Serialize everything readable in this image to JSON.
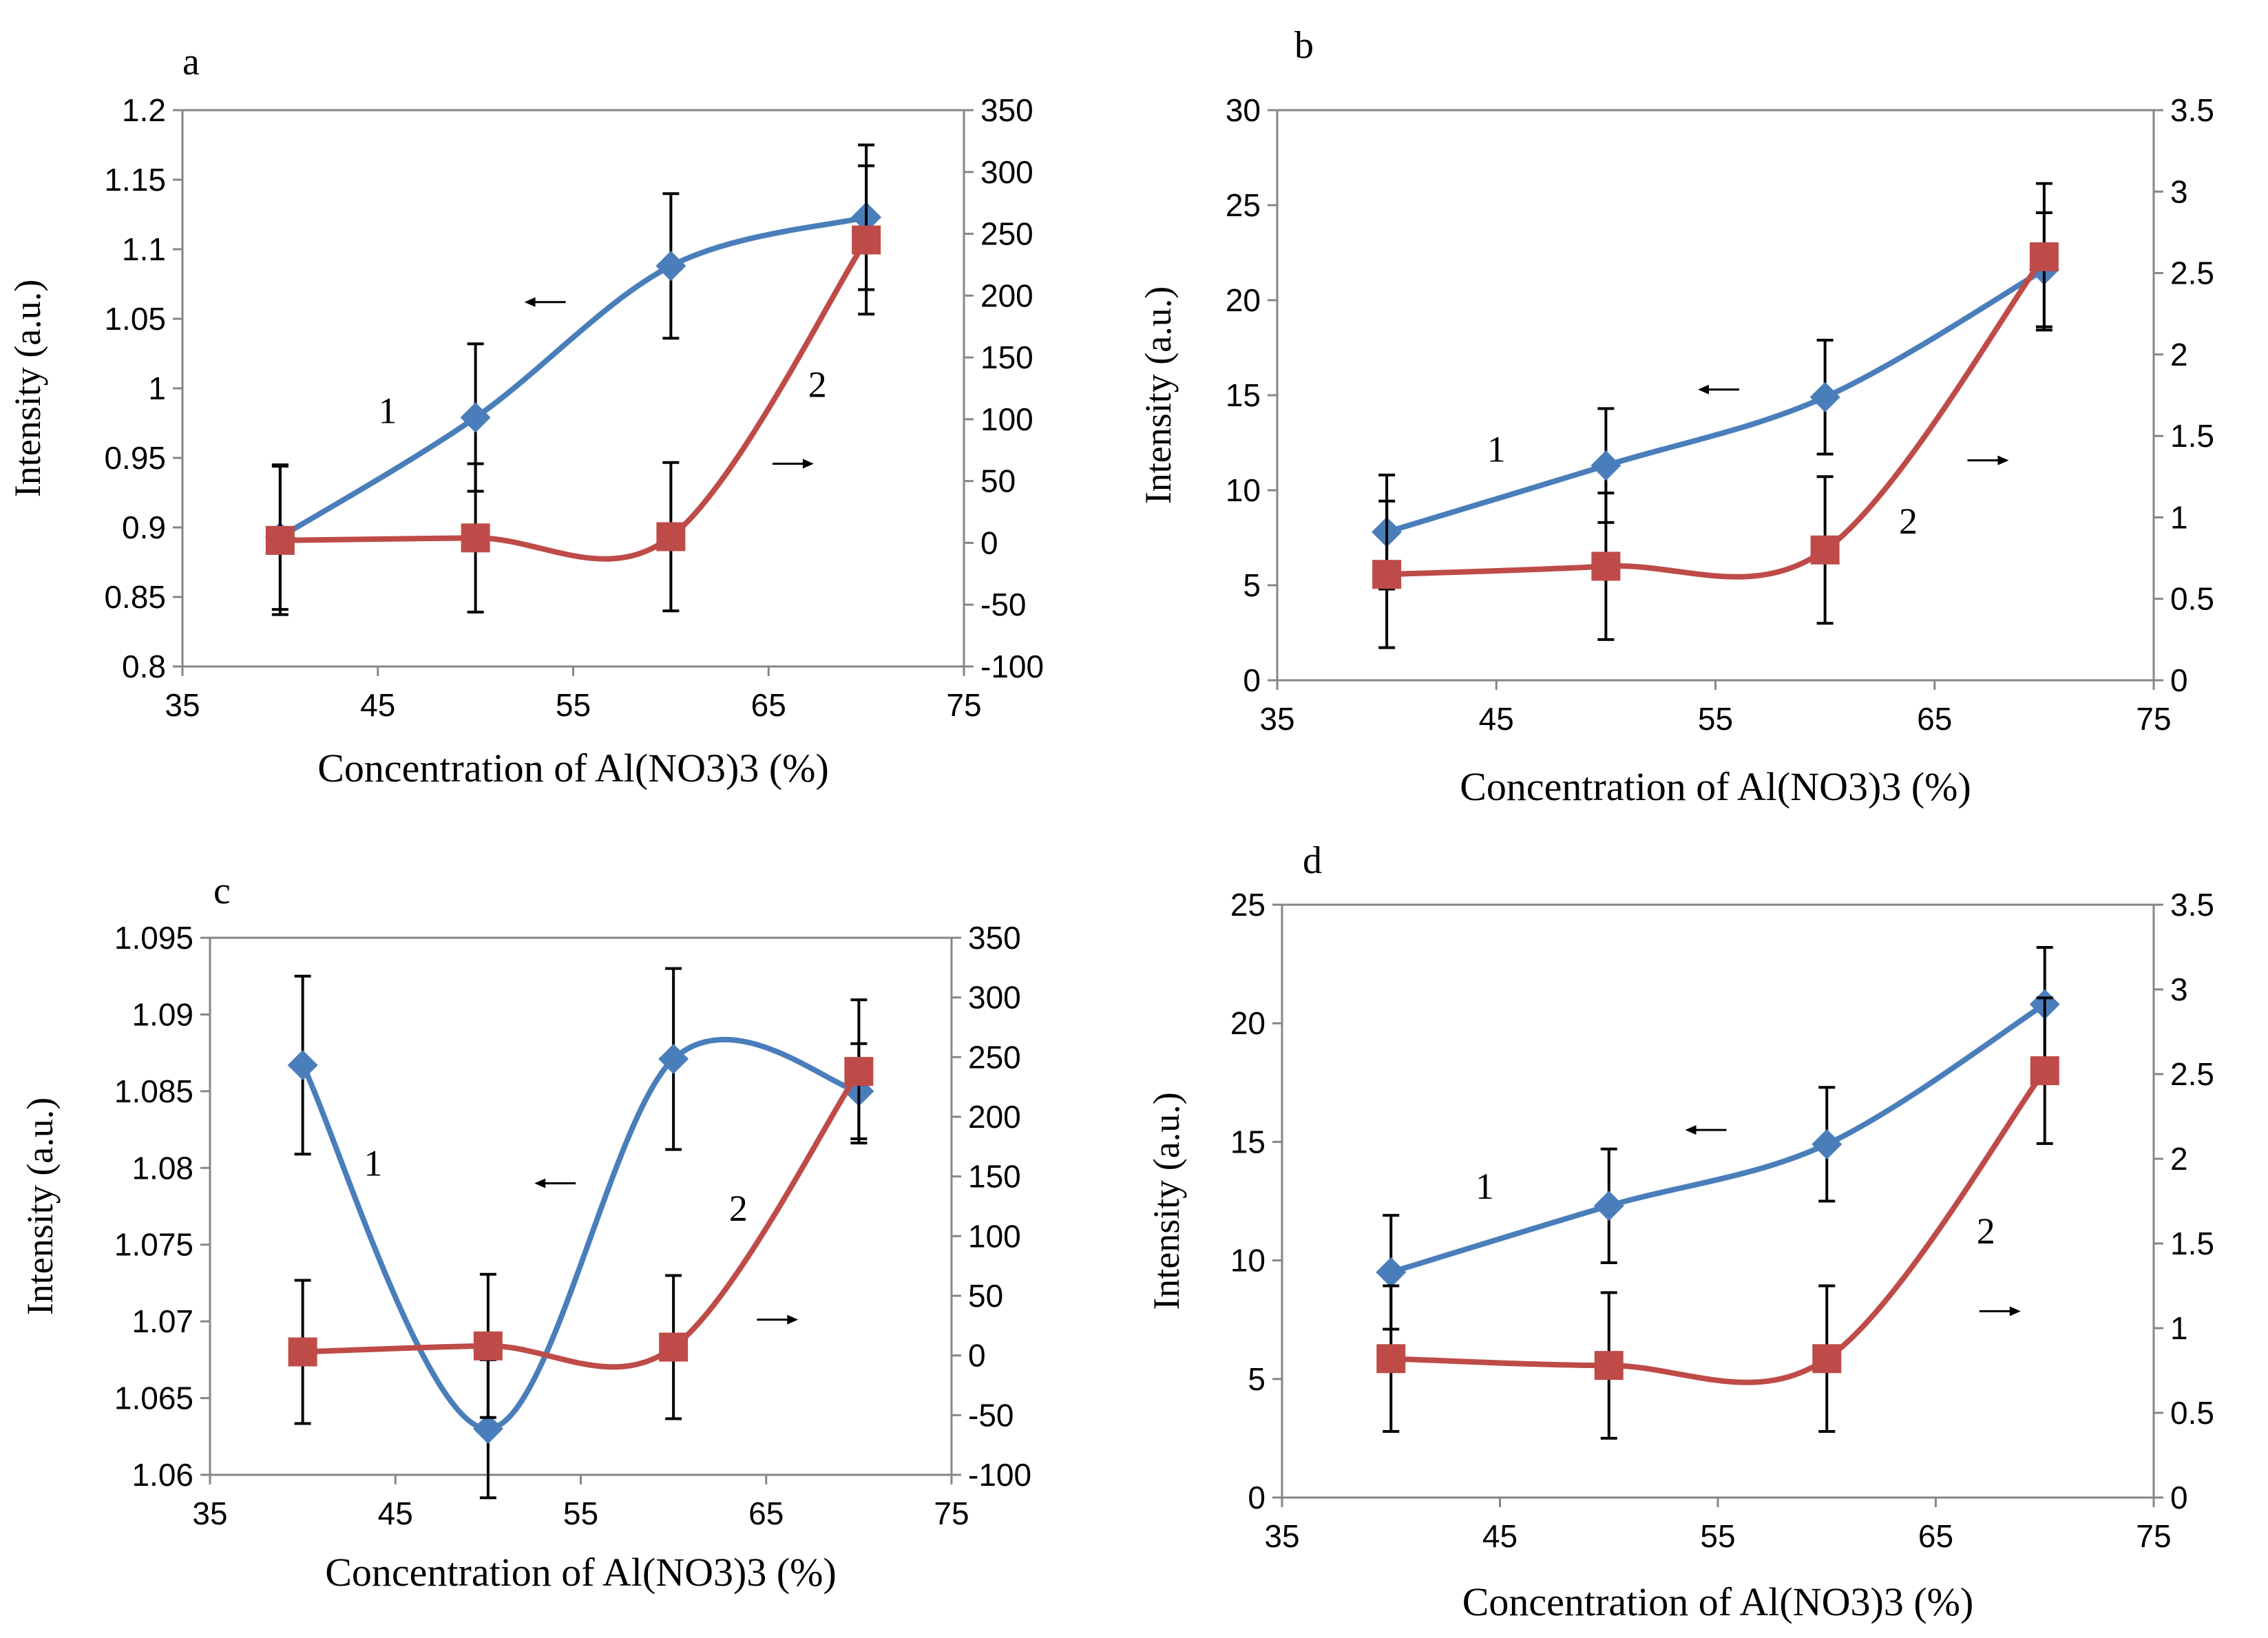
{
  "colors": {
    "series1": "#4A7EBB",
    "series2": "#BE4B48",
    "axis": "#868686",
    "text": "#000000",
    "errorbar": "#000000"
  },
  "chart_data": [
    {
      "id": "a",
      "panel_label": "a",
      "type": "line",
      "xlabel": "Concentration of Al(NO3)3 (%)",
      "ylabel": "Intensity (a.u.)",
      "xlim": [
        35,
        75
      ],
      "x_ticks": [
        35,
        45,
        55,
        65,
        75
      ],
      "left_ylim": [
        0.8,
        1.2
      ],
      "left_ticks": [
        0.8,
        0.85,
        0.9,
        0.95,
        1,
        1.05,
        1.1,
        1.15,
        1.2
      ],
      "left_tick_labels": [
        "0.8",
        "0.85",
        "0.9",
        "0.95",
        "1",
        "1.05",
        "1.1",
        "1.15",
        "1.2"
      ],
      "right_ylim": [
        -100,
        350
      ],
      "right_ticks": [
        -100,
        -50,
        0,
        50,
        100,
        150,
        200,
        250,
        300,
        350
      ],
      "right_tick_labels": [
        "-100",
        "-50",
        "0",
        "50",
        "100",
        "150",
        "200",
        "250",
        "300",
        "350"
      ],
      "series": [
        {
          "name": "1",
          "label": "1",
          "axis": "left",
          "marker": "diamond",
          "color": "#4A7EBB",
          "x": [
            40,
            50,
            60,
            70
          ],
          "y": [
            0.893,
            0.979,
            1.088,
            1.123
          ],
          "err": [
            0.052,
            0.053,
            0.052,
            0.052
          ],
          "label_pos": [
            45.5,
            0.975
          ],
          "arrow": "left",
          "arrow_pos": [
            52.5,
            1.062
          ]
        },
        {
          "name": "2",
          "label": "2",
          "axis": "right",
          "marker": "square",
          "color": "#BE4B48",
          "x": [
            40,
            50,
            60,
            70
          ],
          "y": [
            2,
            4,
            5,
            245
          ],
          "err": [
            60,
            60,
            60,
            60
          ],
          "label_pos": [
            67.5,
            118
          ],
          "arrow": "right",
          "arrow_pos": [
            65.2,
            64
          ]
        }
      ]
    },
    {
      "id": "b",
      "panel_label": "b",
      "type": "line",
      "xlabel": "Concentration of Al(NO3)3 (%)",
      "ylabel": "Intensity (a.u.)",
      "xlim": [
        35,
        75
      ],
      "x_ticks": [
        35,
        45,
        55,
        65,
        75
      ],
      "left_ylim": [
        0,
        30
      ],
      "left_ticks": [
        0,
        5,
        10,
        15,
        20,
        25,
        30
      ],
      "left_tick_labels": [
        "0",
        "5",
        "10",
        "15",
        "20",
        "25",
        "30"
      ],
      "right_ylim": [
        0,
        3.5
      ],
      "right_ticks": [
        0,
        0.5,
        1,
        1.5,
        2,
        2.5,
        3,
        3.5
      ],
      "right_tick_labels": [
        "0",
        "0.5",
        "1",
        "1.5",
        "2",
        "2.5",
        "3",
        "3.5"
      ],
      "series": [
        {
          "name": "1",
          "label": "1",
          "axis": "left",
          "marker": "diamond",
          "color": "#4A7EBB",
          "x": [
            40,
            50,
            60,
            70
          ],
          "y": [
            7.8,
            11.3,
            14.9,
            21.6
          ],
          "err": [
            3.0,
            3.0,
            3.0,
            3.0
          ],
          "label_pos": [
            45.0,
            11.5
          ],
          "arrow": "left",
          "arrow_pos": [
            54.2,
            15.3
          ]
        },
        {
          "name": "2",
          "label": "2",
          "axis": "right",
          "marker": "square",
          "color": "#BE4B48",
          "x": [
            40,
            50,
            60,
            70
          ],
          "y": [
            0.65,
            0.7,
            0.8,
            2.6
          ],
          "err": [
            0.45,
            0.45,
            0.45,
            0.45
          ],
          "label_pos": [
            63.8,
            0.9
          ],
          "arrow": "right",
          "arrow_pos": [
            66.5,
            1.35
          ]
        }
      ]
    },
    {
      "id": "c",
      "panel_label": "c",
      "type": "line",
      "xlabel": "Concentration of Al(NO3)3 (%)",
      "ylabel": "Intensity (a.u.)",
      "xlim": [
        35,
        75
      ],
      "x_ticks": [
        35,
        45,
        55,
        65,
        75
      ],
      "left_ylim": [
        1.06,
        1.095
      ],
      "left_ticks": [
        1.06,
        1.065,
        1.07,
        1.075,
        1.08,
        1.085,
        1.09,
        1.095
      ],
      "left_tick_labels": [
        "1.06",
        "1.065",
        "1.07",
        "1.075",
        "1.08",
        "1.085",
        "1.09",
        "1.095"
      ],
      "right_ylim": [
        -100,
        350
      ],
      "right_ticks": [
        -100,
        -50,
        0,
        50,
        100,
        150,
        200,
        250,
        300,
        350
      ],
      "right_tick_labels": [
        "-100",
        "-50",
        "0",
        "50",
        "100",
        "150",
        "200",
        "250",
        "300",
        "350"
      ],
      "series": [
        {
          "name": "1",
          "label": "1",
          "axis": "left",
          "marker": "diamond",
          "color": "#4A7EBB",
          "x": [
            40,
            50,
            60,
            70
          ],
          "y": [
            1.0867,
            1.063,
            1.0871,
            1.085
          ],
          "err": [
            0.0058,
            0.0045,
            0.0059,
            0.0031
          ],
          "label_pos": [
            43.8,
            1.0795
          ],
          "arrow": "left",
          "arrow_pos": [
            52.5,
            1.079
          ]
        },
        {
          "name": "2",
          "label": "2",
          "axis": "right",
          "marker": "square",
          "color": "#BE4B48",
          "x": [
            40,
            50,
            60,
            70
          ],
          "y": [
            3,
            8,
            7,
            238
          ],
          "err": [
            60,
            60,
            60,
            60
          ],
          "label_pos": [
            63.5,
            113
          ],
          "arrow": "right",
          "arrow_pos": [
            64.5,
            30
          ]
        }
      ]
    },
    {
      "id": "d",
      "panel_label": "d",
      "type": "line",
      "xlabel": "Concentration of Al(NO3)3 (%)",
      "ylabel": "Intensity (a.u.)",
      "xlim": [
        35,
        75
      ],
      "x_ticks": [
        35,
        45,
        55,
        65,
        75
      ],
      "left_ylim": [
        0,
        25
      ],
      "left_ticks": [
        0,
        5,
        10,
        15,
        20,
        25
      ],
      "left_tick_labels": [
        "0",
        "5",
        "10",
        "15",
        "20",
        "25"
      ],
      "right_ylim": [
        0,
        3.5
      ],
      "right_ticks": [
        0,
        0.5,
        1,
        1.5,
        2,
        2.5,
        3,
        3.5
      ],
      "right_tick_labels": [
        "0",
        "0.5",
        "1",
        "1.5",
        "2",
        "2.5",
        "3",
        "3.5"
      ],
      "series": [
        {
          "name": "1",
          "label": "1",
          "axis": "left",
          "marker": "diamond",
          "color": "#4A7EBB",
          "x": [
            40,
            50,
            60,
            70
          ],
          "y": [
            9.5,
            12.3,
            14.9,
            20.8
          ],
          "err": [
            2.4,
            2.4,
            2.4,
            2.4
          ],
          "label_pos": [
            44.3,
            12.6
          ],
          "arrow": "left",
          "arrow_pos": [
            53.5,
            15.5
          ]
        },
        {
          "name": "2",
          "label": "2",
          "axis": "right",
          "marker": "square",
          "color": "#BE4B48",
          "x": [
            40,
            50,
            60,
            70
          ],
          "y": [
            0.82,
            0.78,
            0.82,
            2.52
          ],
          "err": [
            0.43,
            0.43,
            0.43,
            0.43
          ],
          "label_pos": [
            67.3,
            1.5
          ],
          "arrow": "right",
          "arrow_pos": [
            67.0,
            1.1
          ]
        }
      ]
    }
  ]
}
